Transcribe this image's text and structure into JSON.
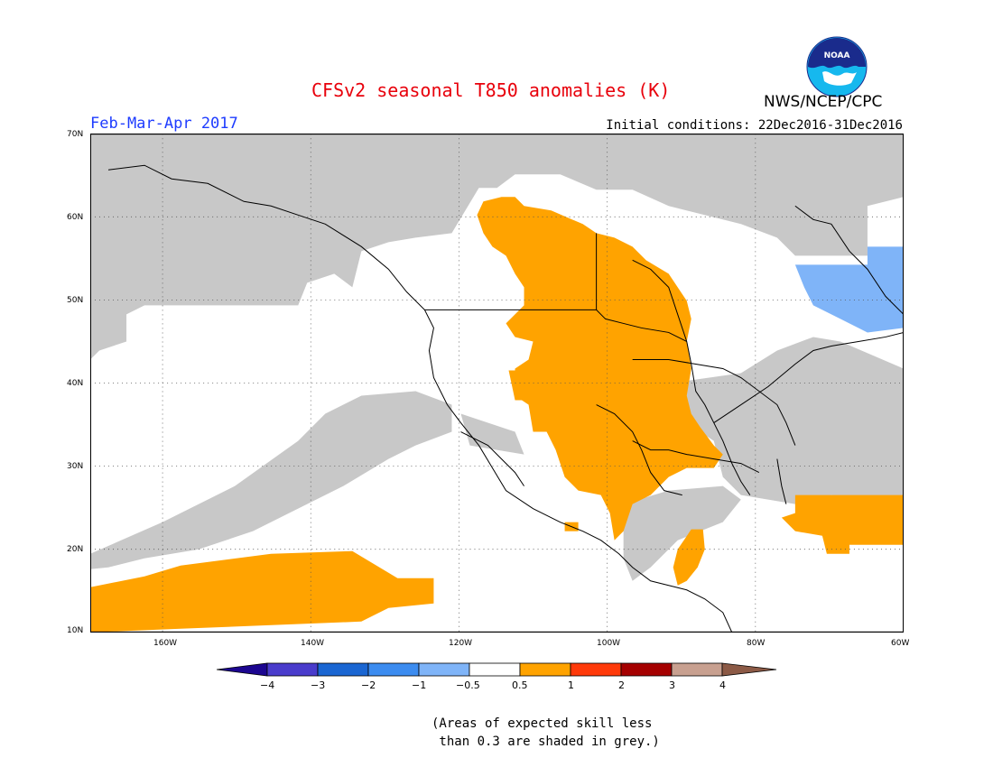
{
  "title": "CFSv2 seasonal T850 anomalies (K)",
  "organization": "NWS/NCEP/CPC",
  "season": "Feb-Mar-Apr 2017",
  "initial_conditions": "Initial conditions: 22Dec2016-31Dec2016",
  "note": "(Areas of expected skill less\n than 0.3 are shaded in grey.)",
  "colors": {
    "title": "#e8000b",
    "season": "#1e3cff",
    "grey": "#c8c8c8",
    "orange": "#ffa300",
    "lightblue": "#7fb4f8",
    "land_outline": "#000000"
  },
  "map": {
    "lat_labels": [
      "70N",
      "60N",
      "50N",
      "40N",
      "30N",
      "20N",
      "10N"
    ],
    "lon_labels": [
      "160W",
      "140W",
      "120W",
      "100W",
      "80W",
      "60W"
    ]
  },
  "colorbar": {
    "labels": [
      "−4",
      "−3",
      "−2",
      "−1",
      "−0.5",
      "0.5",
      "1",
      "2",
      "3",
      "4"
    ],
    "colors": [
      "#1c0690",
      "#4a3ccc",
      "#1a66d2",
      "#3c8cf0",
      "#7fb4f8",
      "#ffffff",
      "#ffa300",
      "#ff3a0a",
      "#a50000",
      "#c8a090",
      "#8c5a46"
    ]
  },
  "logo": {
    "text": "NOAA"
  }
}
